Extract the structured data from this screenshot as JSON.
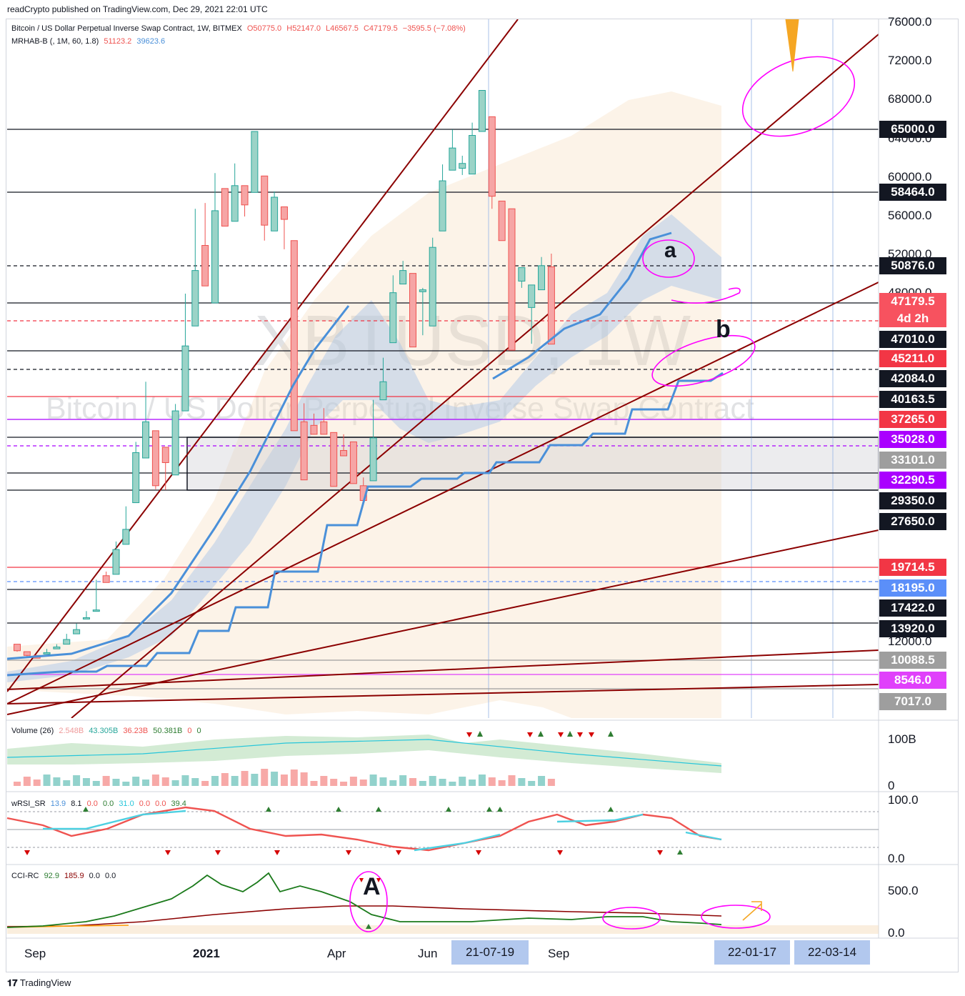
{
  "header": {
    "published": "readCrypto published on TradingView.com, Dec 29, 2021 22:01 UTC",
    "symbol_line": "Bitcoin / US Dollar Perpetual Inverse Swap Contract, 1W, BITMEX",
    "ohlc": {
      "o": "O50775.0",
      "h": "H52147.0",
      "l": "L46567.5",
      "c": "C47179.5",
      "chg": "−3595.5 (−7.08%)"
    },
    "indicator": "MRHAB-B (, 1M, 60, 1.8)",
    "ind_v1": "51123.2",
    "ind_v2": "39623.6"
  },
  "watermark": {
    "ticker": "XBTUSD, 1W",
    "name": "Bitcoin / US Dollar Perpetual Inverse Swap Contract"
  },
  "price_axis": [
    "76000.0",
    "72000.0",
    "68000.0",
    "64000.0",
    "60000.0",
    "56000.0",
    "52000.0",
    "48000.0",
    "12000.0"
  ],
  "price_labels": [
    {
      "text": "65000.0",
      "bg": "#131722"
    },
    {
      "text": "58464.0",
      "bg": "#131722"
    },
    {
      "text": "50876.0",
      "bg": "#131722"
    },
    {
      "text": "47179.5",
      "bg": "#f7525f"
    },
    {
      "text": "4d 2h",
      "bg": "#f7525f"
    },
    {
      "text": "47010.0",
      "bg": "#131722"
    },
    {
      "text": "45211.0",
      "bg": "#f23645"
    },
    {
      "text": "42084.0",
      "bg": "#131722"
    },
    {
      "text": "40163.5",
      "bg": "#131722"
    },
    {
      "text": "37265.0",
      "bg": "#f23645"
    },
    {
      "text": "35028.0",
      "bg": "#aa00ff"
    },
    {
      "text": "33101.0",
      "bg": "#9e9e9e"
    },
    {
      "text": "32290.5",
      "bg": "#aa00ff"
    },
    {
      "text": "29350.0",
      "bg": "#131722"
    },
    {
      "text": "27650.0",
      "bg": "#131722"
    },
    {
      "text": "19714.5",
      "bg": "#f23645"
    },
    {
      "text": "18195.0",
      "bg": "#5b8ff9"
    },
    {
      "text": "17422.0",
      "bg": "#131722"
    },
    {
      "text": "13920.0",
      "bg": "#131722"
    },
    {
      "text": "10088.5",
      "bg": "#9e9e9e"
    },
    {
      "text": "8546.0",
      "bg": "#e040fb"
    },
    {
      "text": "7017.0",
      "bg": "#9e9e9e"
    }
  ],
  "annotations": {
    "a": "a",
    "b": "b",
    "A": "A"
  },
  "volume": {
    "label": "Volume (26)",
    "v1": "2.548B",
    "v2": "43.305B",
    "v3": "36.23B",
    "v4": "50.381B",
    "v5": "0",
    "v6": "0",
    "axis": [
      "100B",
      "0"
    ]
  },
  "wrsi": {
    "label": "wRSI_SR",
    "v1": "13.9",
    "v2": "8.1",
    "v3": "0.0",
    "v4": "0.0",
    "v5": "31.0",
    "v6": "0.0",
    "v7": "0.0",
    "v8": "39.4",
    "axis": [
      "100.0",
      "0.0"
    ]
  },
  "cci": {
    "label": "CCI-RC",
    "v1": "92.9",
    "v2": "185.9",
    "v3": "0.0",
    "v4": "0.0",
    "axis": [
      "500.0",
      "0.0"
    ]
  },
  "x_axis": {
    "labels": [
      "Sep",
      "2021",
      "Apr",
      "Jun",
      "Sep"
    ],
    "boxes": [
      "21-07-19",
      "22-01-17",
      "22-03-14"
    ]
  },
  "footer": "TradingView",
  "colors": {
    "up": "#26a69a",
    "down": "#ef5350",
    "trend": "#8b0000",
    "ma": "#4a90d9",
    "marker": "#ff00ff"
  },
  "chart_data": {
    "type": "candlestick",
    "title": "Bitcoin / US Dollar Perpetual Inverse Swap Contract, 1W, BITMEX",
    "interval": "1W",
    "candles_approx": [
      [
        11800,
        11700,
        11100,
        11000
      ],
      [
        11000,
        10800,
        10600,
        10500
      ],
      [
        10600,
        10600,
        10300,
        10400
      ],
      [
        10800,
        11000,
        10900,
        11300
      ],
      [
        11300,
        11600,
        11500,
        11800
      ],
      [
        11800,
        13000,
        12400,
        13200
      ],
      [
        13200,
        14000,
        13800,
        14800
      ],
      [
        15600,
        16200,
        15800,
        16900
      ],
      [
        16900,
        17600,
        17100,
        18800
      ],
      [
        19100,
        19400,
        18600,
        18900
      ],
      [
        19200,
        23000,
        22800,
        24200
      ],
      [
        23700,
        26800,
        26300,
        28900
      ],
      [
        29200,
        32200,
        33800,
        34800
      ],
      [
        33300,
        41800,
        37000,
        40200
      ],
      [
        36000,
        32300,
        31500,
        31000
      ],
      [
        34300,
        30900,
        33000,
        32200
      ],
      [
        32500,
        38200,
        38500,
        39500
      ],
      [
        38500,
        47800,
        46400,
        48000
      ],
      [
        47300,
        55800,
        50400,
        56800
      ],
      [
        53000,
        57400,
        48800,
        51900
      ],
      [
        47800,
        60500,
        56600,
        59000
      ],
      [
        58900,
        57900,
        55000,
        56700
      ],
      [
        55500,
        60100,
        59200,
        61500
      ],
      [
        59200,
        58700,
        57200,
        56000
      ],
      [
        58500,
        63500,
        64800,
        60500
      ],
      [
        60200,
        53500,
        55100,
        56000
      ],
      [
        54500,
        56500,
        58000,
        58600
      ],
      [
        57000,
        53200,
        55700,
        52600
      ],
      [
        53500,
        48200,
        36000,
        38800
      ],
      [
        37000,
        39600,
        32300,
        36400
      ],
      [
        36600,
        37600,
        35600,
        38100
      ],
      [
        37000,
        35800,
        35600,
        38900
      ],
      [
        35800,
        33800,
        31400,
        34000
      ],
      [
        34000,
        34600,
        33500,
        35600
      ],
      [
        34800,
        32700,
        31800,
        33400
      ],
      [
        31500,
        30800,
        29400,
        32400
      ],
      [
        32200,
        39900,
        35200,
        40100
      ],
      [
        40100,
        44500,
        41800,
        45300
      ],
      [
        46700,
        49100,
        48100,
        49900
      ],
      [
        49000,
        51400,
        50400,
        51100
      ],
      [
        50100,
        47200,
        46300,
        48000
      ],
      [
        48200,
        48600,
        48400,
        47100
      ],
      [
        47300,
        51700,
        52800,
        53800
      ],
      [
        54500,
        60200,
        59700,
        61400
      ],
      [
        60800,
        65000,
        63100,
        61400
      ],
      [
        61000,
        60300,
        61500,
        62300
      ],
      [
        60400,
        63000,
        64400,
        65700
      ],
      [
        64800,
        67800,
        69000,
        66700
      ],
      [
        66300,
        59500,
        58100,
        56800
      ],
      [
        57600,
        54800,
        53500,
        57200
      ],
      [
        56800,
        48300,
        46000,
        49200
      ],
      [
        49300,
        50100,
        50700,
        48600
      ],
      [
        47700,
        46600,
        48900,
        46700
      ],
      [
        48400,
        50900,
        50900,
        51800
      ],
      [
        50775,
        52147,
        46567.5,
        47179.5
      ]
    ],
    "horizontal_levels": [
      65000.0,
      58464.0,
      50876.0,
      47010.0,
      45211.0,
      42084.0,
      40163.5,
      37265.0,
      35028.0,
      33101.0,
      32290.5,
      29350.0,
      27650.0,
      19714.5,
      18195.0,
      17422.0,
      13920.0,
      10088.5,
      8546.0,
      7017.0
    ],
    "current_price": 47179.5,
    "x_labels": [
      "Sep",
      "2021",
      "Apr",
      "Jun",
      "21-07-19",
      "Sep",
      "22-01-17",
      "22-03-14"
    ],
    "panels": [
      "Volume (26)",
      "wRSI_SR",
      "CCI-RC"
    ]
  }
}
